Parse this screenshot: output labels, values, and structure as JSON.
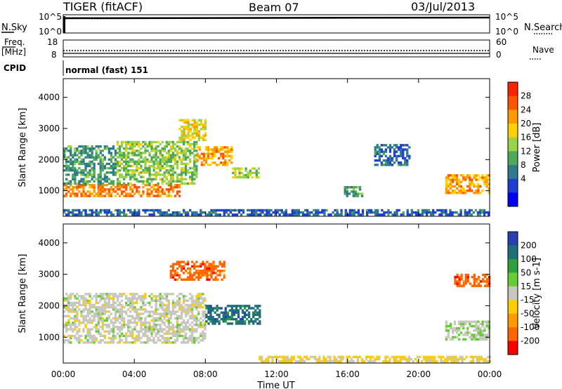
{
  "header": {
    "radar": "TIGER (fitACF)",
    "beam": "Beam 07",
    "date": "03/Jul/2013"
  },
  "panel_labels": {
    "nsky": "N.Sky",
    "nsearch": "N.Search",
    "freq": "Freq.",
    "freq_unit": "[MHz]",
    "nave": "Nave",
    "cpid": "CPID",
    "cpid_value": "normal (fast) 151"
  },
  "small_panel_ticks": {
    "nsky_top": "10^5",
    "nsky_bot": "10^0",
    "nsearch_top": "10^5",
    "nsearch_bot": "10^0",
    "freq_top": "18",
    "freq_bot": "8",
    "nave_top": "60",
    "nave_bot": "0"
  },
  "colorbar_power": {
    "label": "Power [dB]",
    "ticks": [
      "28",
      "24",
      "20",
      "16",
      "12",
      "8",
      "4"
    ],
    "colors": [
      "#ff2200",
      "#ff5500",
      "#ff9900",
      "#ffd000",
      "#9ad24a",
      "#4ea85a",
      "#2e7a8a",
      "#1f3fd0",
      "#0000ff"
    ]
  },
  "colorbar_velocity": {
    "label": "Velocity [m s-1]",
    "ticks": [
      "200",
      "100",
      "50",
      "15",
      "-15",
      "-50",
      "-100",
      "-200"
    ],
    "colors": [
      "#2a3fb0",
      "#1f6f7a",
      "#2f9e3f",
      "#66cc33",
      "#c8c8c0",
      "#ffcc00",
      "#ff9900",
      "#ff6600",
      "#ff0000"
    ]
  },
  "chart_data": [
    {
      "type": "heatmap",
      "title": "",
      "xlabel": "Time UT",
      "ylabel": "Slant Range [km]",
      "x_ticks": [
        "00:00",
        "04:00",
        "08:00",
        "12:00",
        "16:00",
        "20:00",
        "00:00"
      ],
      "xlim": [
        0,
        24
      ],
      "y_ticks": [
        "1000",
        "2000",
        "3000",
        "4000"
      ],
      "ylim": [
        180,
        4600
      ],
      "quantity": "Power [dB]",
      "zlim": [
        0,
        30
      ],
      "regions": [
        {
          "t": [
            0.0,
            6.5
          ],
          "r": [
            800,
            1200
          ],
          "value": 24
        },
        {
          "t": [
            0.0,
            3.0
          ],
          "r": [
            1200,
            2400
          ],
          "value": 10
        },
        {
          "t": [
            3.0,
            7.5
          ],
          "r": [
            1200,
            2600
          ],
          "value": 14
        },
        {
          "t": [
            6.5,
            8.0
          ],
          "r": [
            2600,
            3300
          ],
          "value": 18
        },
        {
          "t": [
            7.5,
            9.5
          ],
          "r": [
            1800,
            2400
          ],
          "value": 22
        },
        {
          "t": [
            9.5,
            11.0
          ],
          "r": [
            1400,
            1700
          ],
          "value": 16
        },
        {
          "t": [
            15.8,
            16.8
          ],
          "r": [
            800,
            1100
          ],
          "value": 10
        },
        {
          "t": [
            17.5,
            19.5
          ],
          "r": [
            1800,
            2500
          ],
          "value": 6
        },
        {
          "t": [
            21.5,
            24.0
          ],
          "r": [
            900,
            1500
          ],
          "value": 22
        },
        {
          "t": [
            0.0,
            24.0
          ],
          "r": [
            200,
            400
          ],
          "value": 6
        }
      ]
    },
    {
      "type": "heatmap",
      "title": "",
      "xlabel": "Time UT",
      "ylabel": "Slant Range [km]",
      "x_ticks": [
        "00:00",
        "04:00",
        "08:00",
        "12:00",
        "16:00",
        "20:00",
        "00:00"
      ],
      "xlim": [
        0,
        24
      ],
      "y_ticks": [
        "1000",
        "2000",
        "3000",
        "4000"
      ],
      "ylim": [
        180,
        4600
      ],
      "quantity": "Velocity [m s-1]",
      "zlim": [
        -200,
        200
      ],
      "regions": [
        {
          "t": [
            0.0,
            8.0
          ],
          "r": [
            800,
            2400
          ],
          "value": 0
        },
        {
          "t": [
            6.0,
            9.0
          ],
          "r": [
            2800,
            3400
          ],
          "value": -150
        },
        {
          "t": [
            8.0,
            11.0
          ],
          "r": [
            1400,
            2000
          ],
          "value": 150
        },
        {
          "t": [
            11.0,
            24.0
          ],
          "r": [
            200,
            400
          ],
          "value": -30
        },
        {
          "t": [
            21.5,
            24.0
          ],
          "r": [
            900,
            1500
          ],
          "value": 30
        },
        {
          "t": [
            22.0,
            24.0
          ],
          "r": [
            2600,
            3000
          ],
          "value": -150
        }
      ]
    }
  ]
}
